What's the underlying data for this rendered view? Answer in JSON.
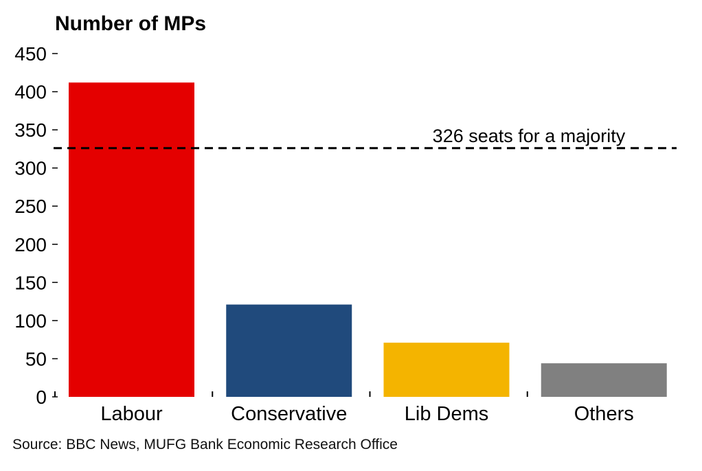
{
  "chart_data": {
    "type": "bar",
    "title": "Number of MPs",
    "categories": [
      "Labour",
      "Conservative",
      "Lib Dems",
      "Others"
    ],
    "values": [
      412,
      121,
      71,
      44
    ],
    "colors": [
      "#e40000",
      "#204a7c",
      "#f4b400",
      "#808080"
    ],
    "ylim": [
      0,
      450
    ],
    "yticks": [
      0,
      50,
      100,
      150,
      200,
      250,
      300,
      350,
      400,
      450
    ],
    "reference_line": {
      "value": 326,
      "label": "326 seats for a majority",
      "style": "dashed"
    },
    "grid": false,
    "legend": "none"
  },
  "source": "Source: BBC News, MUFG Bank Economic Research Office"
}
